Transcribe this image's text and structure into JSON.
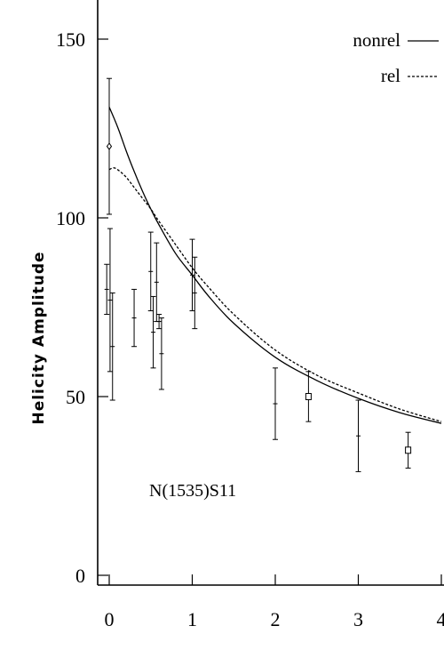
{
  "chart_data": {
    "type": "scatter",
    "xlabel": "",
    "ylabel": "Helicity Amplitude",
    "xlim": [
      -0.15,
      4
    ],
    "ylim": [
      -10,
      160
    ],
    "xticks": [
      0,
      1,
      2,
      3,
      4
    ],
    "yticks": [
      0,
      50,
      100,
      150
    ],
    "xtick_labels": [
      "0",
      "1",
      "2",
      "3",
      "4"
    ],
    "ytick_labels": [
      "0",
      "50",
      "100",
      "150"
    ],
    "annotation": "N(1535)S11",
    "legend_position": "top-right",
    "curves": [
      {
        "name": "nonrel",
        "style": "solid",
        "x": [
          0,
          0.1,
          0.2,
          0.3,
          0.4,
          0.5,
          0.6,
          0.8,
          1.0,
          1.2,
          1.5,
          2.0,
          2.5,
          3.0,
          3.5,
          4.0
        ],
        "y": [
          131,
          125.5,
          119,
          113,
          107.5,
          102.5,
          98,
          90,
          84,
          78,
          70.5,
          61,
          54.5,
          49.5,
          45.5,
          42.5
        ]
      },
      {
        "name": "rel",
        "style": "dashed",
        "x": [
          0,
          0.05,
          0.1,
          0.2,
          0.3,
          0.4,
          0.5,
          0.6,
          0.8,
          1.0,
          1.2,
          1.5,
          2.0,
          2.5,
          3.0,
          3.5,
          4.0
        ],
        "y": [
          113.5,
          114,
          113.5,
          111.5,
          108.5,
          105.5,
          102.5,
          99,
          92.5,
          86,
          80.5,
          73,
          63,
          56,
          51,
          46.5,
          43
        ]
      }
    ],
    "points": [
      {
        "x": 0,
        "y": 120,
        "err": 19,
        "marker": "diamond"
      },
      {
        "x": -0.03,
        "y": 80,
        "err": 7,
        "marker": "plus"
      },
      {
        "x": 0.01,
        "y": 77,
        "err": 20,
        "marker": "plus"
      },
      {
        "x": 0.04,
        "y": 64,
        "err": 15,
        "marker": "plus"
      },
      {
        "x": 0.3,
        "y": 72,
        "err": 8,
        "marker": "plus"
      },
      {
        "x": 0.5,
        "y": 85,
        "err": 11,
        "marker": "plus"
      },
      {
        "x": 0.53,
        "y": 68,
        "err": 10,
        "marker": "plus"
      },
      {
        "x": 0.57,
        "y": 82,
        "err": 11,
        "marker": "plus"
      },
      {
        "x": 0.6,
        "y": 71,
        "err": 2,
        "marker": "plus"
      },
      {
        "x": 0.63,
        "y": 62,
        "err": 10,
        "marker": "plus"
      },
      {
        "x": 1.0,
        "y": 84,
        "err": 10,
        "marker": "plus"
      },
      {
        "x": 1.03,
        "y": 79,
        "err": 10,
        "marker": "plus"
      },
      {
        "x": 2.0,
        "y": 48,
        "err": 10,
        "marker": "plus"
      },
      {
        "x": 2.4,
        "y": 50,
        "err": 7,
        "marker": "square"
      },
      {
        "x": 3.0,
        "y": 39,
        "err": 10,
        "marker": "plus"
      },
      {
        "x": 3.6,
        "y": 35,
        "err": 5,
        "marker": "square"
      }
    ]
  }
}
